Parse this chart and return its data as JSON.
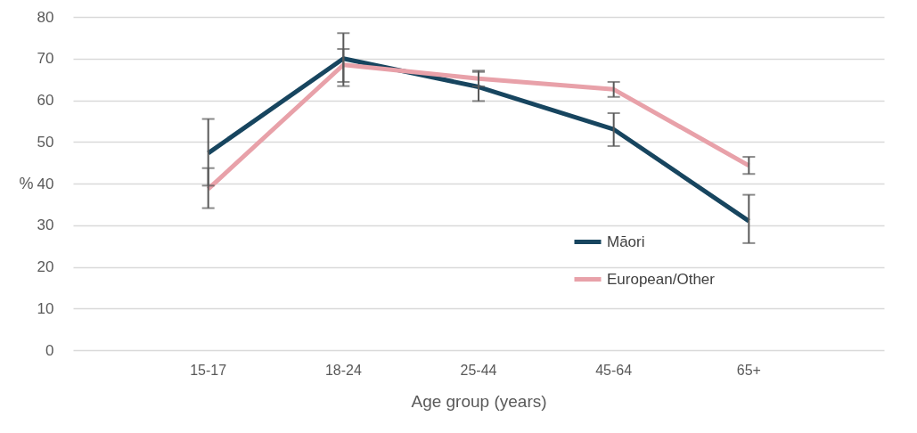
{
  "chart_data": {
    "type": "line",
    "xlabel": "Age group (years)",
    "ylabel": "%",
    "categories": [
      "15-17",
      "18-24",
      "25-44",
      "45-64",
      "65+"
    ],
    "series": [
      {
        "name": "Māori",
        "color": "#17455f",
        "values": [
          47.3,
          70.0,
          63.2,
          53.0,
          31.0
        ],
        "errors": [
          [
            39.5,
            55.5
          ],
          [
            63.4,
            76.1
          ],
          [
            59.8,
            66.8
          ],
          [
            49.0,
            56.9
          ],
          [
            25.7,
            37.3
          ]
        ]
      },
      {
        "name": "European/Other",
        "color": "#e8a1a9",
        "values": [
          38.7,
          68.5,
          65.2,
          62.6,
          44.3
        ],
        "errors": [
          [
            34.1,
            43.7
          ],
          [
            64.4,
            72.3
          ],
          [
            63.3,
            67.1
          ],
          [
            60.8,
            64.4
          ],
          [
            42.3,
            46.4
          ]
        ]
      }
    ],
    "ylim": [
      0,
      80
    ],
    "yticks": [
      0,
      10,
      20,
      30,
      40,
      50,
      60,
      70,
      80
    ],
    "grid": "y",
    "legend": "bottom right",
    "marker": "none",
    "line_style": "solid"
  }
}
